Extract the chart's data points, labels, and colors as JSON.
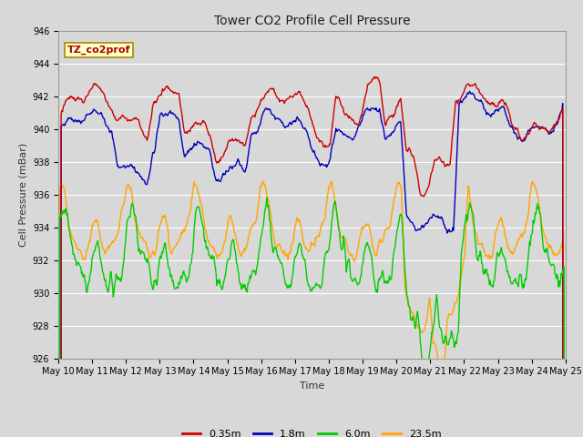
{
  "title": "Tower CO2 Profile Cell Pressure",
  "xlabel": "Time",
  "ylabel": "Cell Pressure (mBar)",
  "ylim": [
    926,
    946
  ],
  "background_color": "#d8d8d8",
  "plot_bg_color": "#d8d8d8",
  "legend_labels": [
    "0.35m",
    "1.8m",
    "6.0m",
    "23.5m"
  ],
  "line_colors": [
    "#cc0000",
    "#0000bb",
    "#00cc00",
    "#ffa500"
  ],
  "annotation_text": "TZ_co2prof",
  "annotation_bg": "#ffffcc",
  "annotation_border": "#aa8800",
  "xtick_labels": [
    "May 10",
    "May 11",
    "May 12",
    "May 13",
    "May 14",
    "May 15",
    "May 16",
    "May 17",
    "May 18",
    "May 19",
    "May 20",
    "May 21",
    "May 22",
    "May 23",
    "May 24",
    "May 25"
  ],
  "grid_color": "#ffffff",
  "linewidth": 1.0,
  "title_fontsize": 10,
  "axis_label_fontsize": 8,
  "tick_fontsize": 7
}
